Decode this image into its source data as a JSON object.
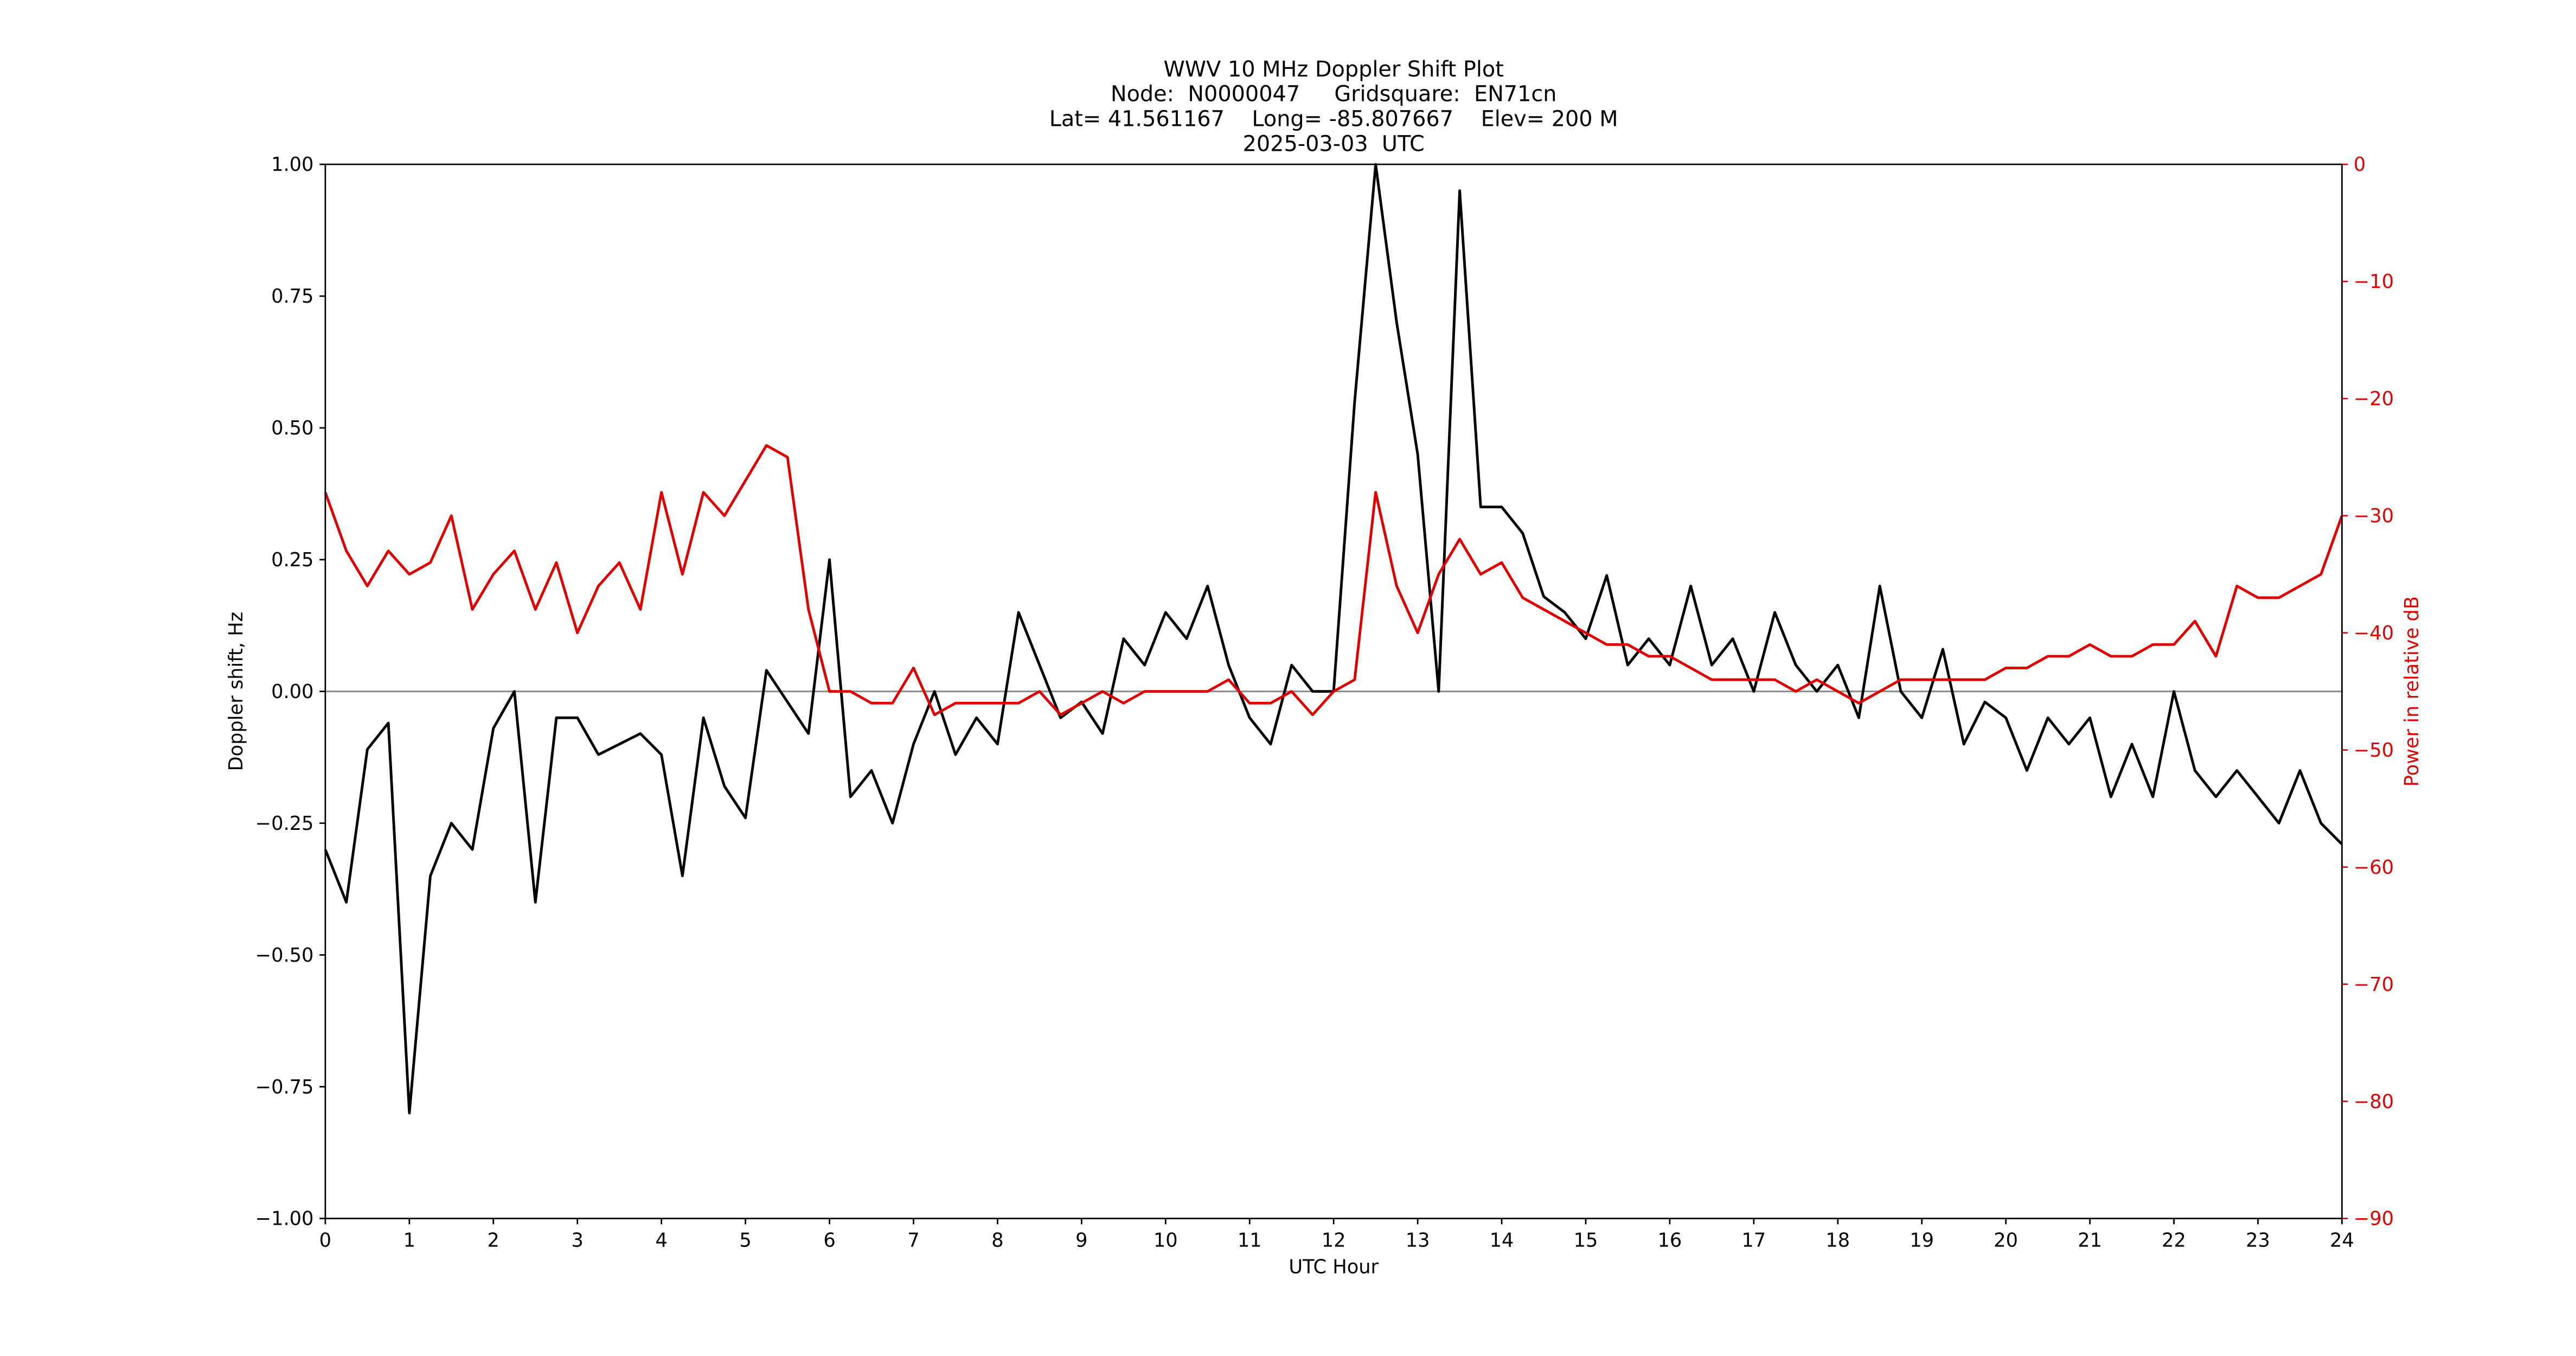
{
  "chart_data": {
    "type": "line",
    "title": [
      "WWV 10 MHz Doppler Shift Plot",
      "Node:  N0000047     Gridsquare:  EN71cn",
      "Lat= 41.561167    Long= -85.807667    Elev= 200 M",
      "2025-03-03  UTC"
    ],
    "xlabel": "UTC Hour",
    "ylabel": "Doppler shift, Hz",
    "y2label": "Power in relative dB",
    "y2color": "#e00000",
    "xlim": [
      0,
      24
    ],
    "xticks": [
      0,
      1,
      2,
      3,
      4,
      5,
      6,
      7,
      8,
      9,
      10,
      11,
      12,
      13,
      14,
      15,
      16,
      17,
      18,
      19,
      20,
      21,
      22,
      23,
      24
    ],
    "ylim": [
      -1,
      1
    ],
    "yticks": [
      {
        "value": -1,
        "label": "−1.00"
      },
      {
        "value": -0.75,
        "label": "−0.75"
      },
      {
        "value": -0.5,
        "label": "−0.50"
      },
      {
        "value": -0.25,
        "label": "−0.25"
      },
      {
        "value": 0,
        "label": "0.00"
      },
      {
        "value": 0.25,
        "label": "0.25"
      },
      {
        "value": 0.5,
        "label": "0.50"
      },
      {
        "value": 0.75,
        "label": "0.75"
      },
      {
        "value": 1,
        "label": "1.00"
      }
    ],
    "y2lim": [
      -90,
      0
    ],
    "y2ticks": [
      {
        "value": -90,
        "label": "−90"
      },
      {
        "value": -80,
        "label": "−80"
      },
      {
        "value": -70,
        "label": "−70"
      },
      {
        "value": -60,
        "label": "−60"
      },
      {
        "value": -50,
        "label": "−50"
      },
      {
        "value": -40,
        "label": "−40"
      },
      {
        "value": -30,
        "label": "−30"
      },
      {
        "value": -20,
        "label": "−20"
      },
      {
        "value": -10,
        "label": "−10"
      },
      0
    ],
    "hlines": [
      0
    ],
    "x": [
      0,
      0.25,
      0.5,
      0.75,
      1,
      1.25,
      1.5,
      1.75,
      2,
      2.25,
      2.5,
      2.75,
      3,
      3.25,
      3.5,
      3.75,
      4,
      4.25,
      4.5,
      4.75,
      5,
      5.25,
      5.5,
      5.75,
      6,
      6.25,
      6.5,
      6.75,
      7,
      7.25,
      7.5,
      7.75,
      8,
      8.25,
      8.5,
      8.75,
      9,
      9.25,
      9.5,
      9.75,
      10,
      10.25,
      10.5,
      10.75,
      11,
      11.25,
      11.5,
      11.75,
      12,
      12.25,
      12.5,
      12.75,
      13,
      13.25,
      13.5,
      13.75,
      14,
      14.25,
      14.5,
      14.75,
      15,
      15.25,
      15.5,
      15.75,
      16,
      16.25,
      16.5,
      16.75,
      17,
      17.25,
      17.5,
      17.75,
      18,
      18.25,
      18.5,
      18.75,
      19,
      19.25,
      19.5,
      19.75,
      20,
      20.25,
      20.5,
      20.75,
      21,
      21.25,
      21.5,
      21.75,
      22,
      22.25,
      22.5,
      22.75,
      23,
      23.25,
      23.5,
      23.75,
      24
    ],
    "series": [
      {
        "color": "#000000",
        "values": [
          -0.3,
          -0.4,
          -0.11,
          -0.06,
          -0.8,
          -0.35,
          -0.25,
          -0.3,
          -0.07,
          0.0,
          -0.4,
          -0.05,
          -0.05,
          -0.12,
          -0.1,
          -0.08,
          -0.12,
          -0.35,
          -0.05,
          -0.18,
          -0.24,
          0.04,
          -0.02,
          -0.08,
          0.25,
          -0.2,
          -0.15,
          -0.25,
          -0.1,
          0.0,
          -0.12,
          -0.05,
          -0.1,
          0.15,
          0.05,
          -0.05,
          -0.02,
          -0.08,
          0.1,
          0.05,
          0.15,
          0.1,
          0.2,
          0.05,
          -0.05,
          -0.1,
          0.05,
          0.0,
          0.0,
          0.55,
          1.0,
          0.7,
          0.45,
          0.0,
          0.95,
          0.35,
          0.35,
          0.3,
          0.18,
          0.15,
          0.1,
          0.22,
          0.05,
          0.1,
          0.05,
          0.2,
          0.05,
          0.1,
          0.0,
          0.15,
          0.05,
          0.0,
          0.05,
          -0.05,
          0.2,
          0.0,
          -0.05,
          0.08,
          -0.1,
          -0.02,
          -0.05,
          -0.15,
          -0.05,
          -0.1,
          -0.05,
          -0.2,
          -0.1,
          -0.2,
          0.0,
          -0.15,
          -0.2,
          -0.15,
          -0.2,
          -0.25,
          -0.15,
          -0.25,
          -0.29
        ]
      },
      {
        "color": "#e00000",
        "axis": "y2",
        "values": [
          -28,
          -33,
          -36,
          -33,
          -35,
          -34,
          -30,
          -38,
          -35,
          -33,
          -38,
          -34,
          -40,
          -36,
          -34,
          -38,
          -28,
          -35,
          -28,
          -30,
          -27,
          -24,
          -25,
          -38,
          -45,
          -45,
          -46,
          -46,
          -43,
          -47,
          -46,
          -46,
          -46,
          -46,
          -45,
          -47,
          -46,
          -45,
          -46,
          -45,
          -45,
          -45,
          -45,
          -44,
          -46,
          -46,
          -45,
          -47,
          -45,
          -44,
          -28,
          -36,
          -40,
          -35,
          -32,
          -35,
          -34,
          -37,
          -38,
          -39,
          -40,
          -41,
          -41,
          -42,
          -42,
          -43,
          -44,
          -44,
          -44,
          -44,
          -45,
          -44,
          -45,
          -46,
          -45,
          -44,
          -44,
          -44,
          -44,
          -44,
          -43,
          -43,
          -42,
          -42,
          -41,
          -42,
          -42,
          -41,
          -41,
          -39,
          -42,
          -36,
          -37,
          -37,
          -36,
          -35,
          -30
        ]
      }
    ]
  }
}
